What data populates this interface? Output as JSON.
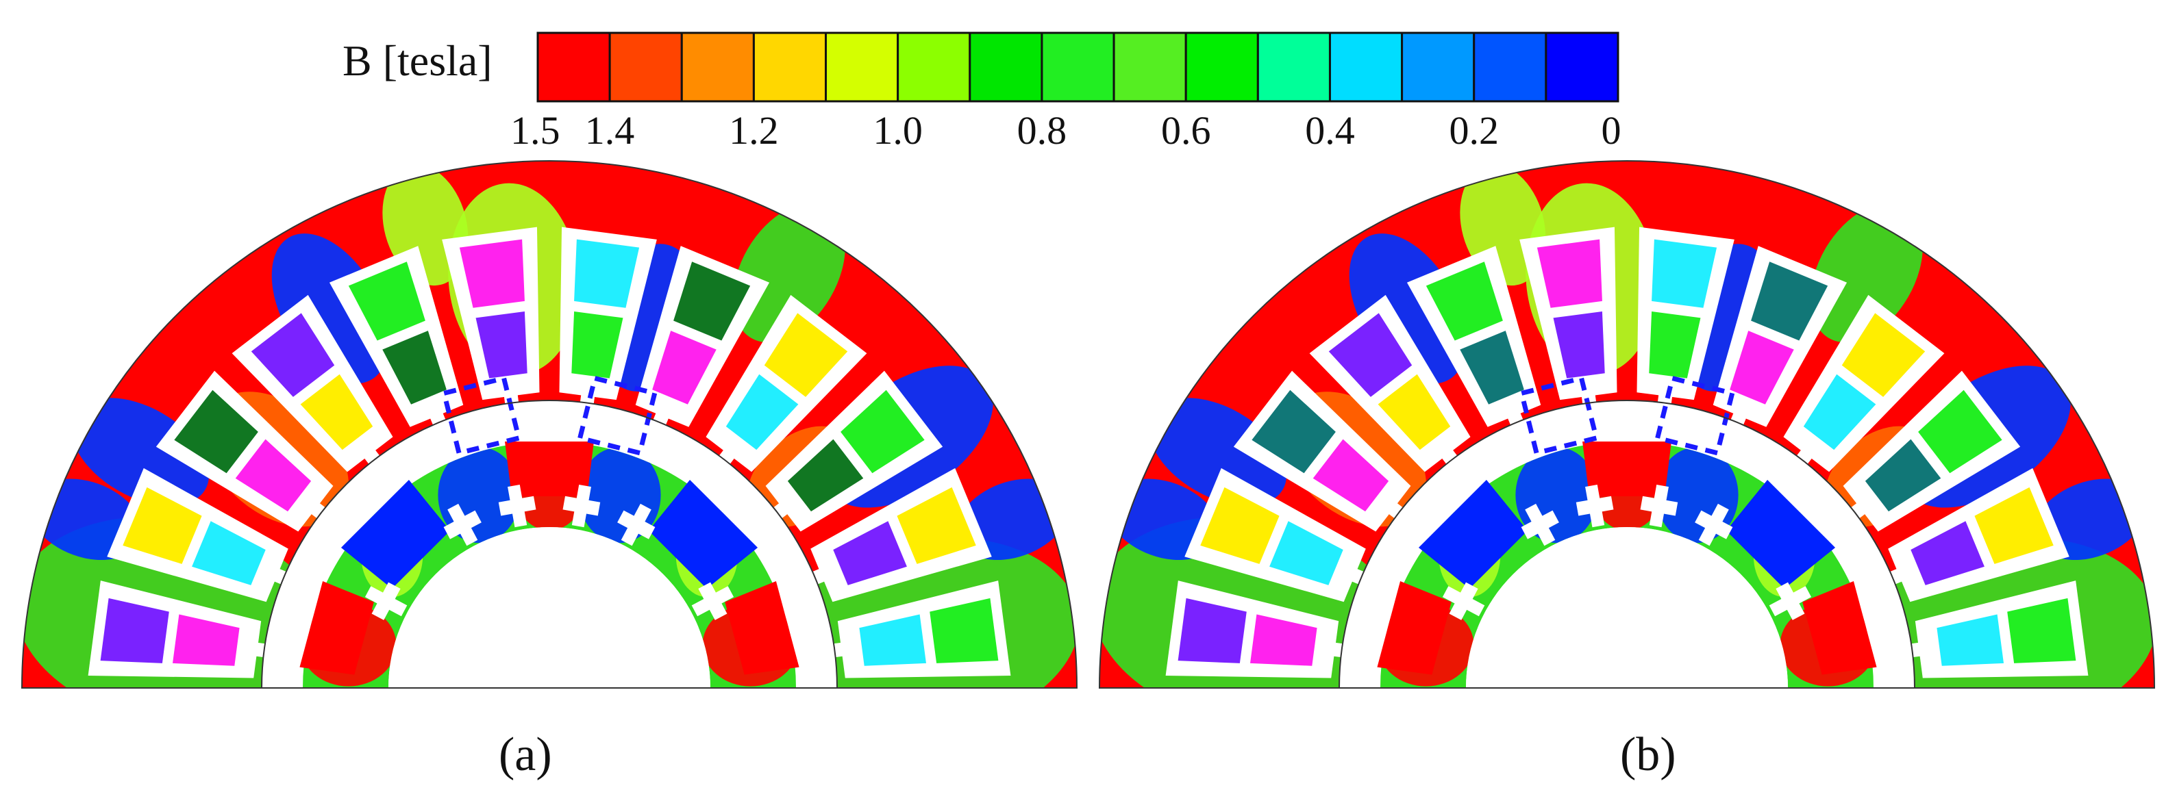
{
  "colorbar": {
    "label": "B [tesla]",
    "colors": [
      "#ff0000",
      "#ff4400",
      "#ff8c00",
      "#ffd700",
      "#d4ff00",
      "#8cff00",
      "#00e600",
      "#22ee22",
      "#55ee22",
      "#00ee00",
      "#00ff99",
      "#00ddff",
      "#0099ff",
      "#0055ff",
      "#0000ff"
    ],
    "tick_labels": [
      "1.5",
      "1.4",
      "1.2",
      "1.0",
      "0.8",
      "0.6",
      "0.4",
      "0.2",
      "0"
    ],
    "tick_values": [
      1.5,
      1.4,
      1.2,
      1.0,
      0.8,
      0.6,
      0.4,
      0.2,
      0
    ],
    "range": [
      0,
      1.5
    ]
  },
  "panels": [
    {
      "label": "(a)",
      "variant": "a"
    },
    {
      "label": "(b)",
      "variant": "b"
    }
  ],
  "colors": {
    "stator_base": "#ff0000",
    "yoke_mid": "#ff2200",
    "green_region": "#33dd22",
    "yellowgreen": "#aaff22",
    "blue_region": "#0033ff",
    "magnet": "#0022ff",
    "coil_magenta": "#ff22ee",
    "coil_violet": "#7a22ff",
    "coil_green": "#22ee22",
    "coil_darkgreen": "#117722",
    "coil_yellow": "#ffee00",
    "coil_cyan": "#22eeff",
    "coil_teal": "#117777",
    "dash_box": "#1a1aff"
  }
}
